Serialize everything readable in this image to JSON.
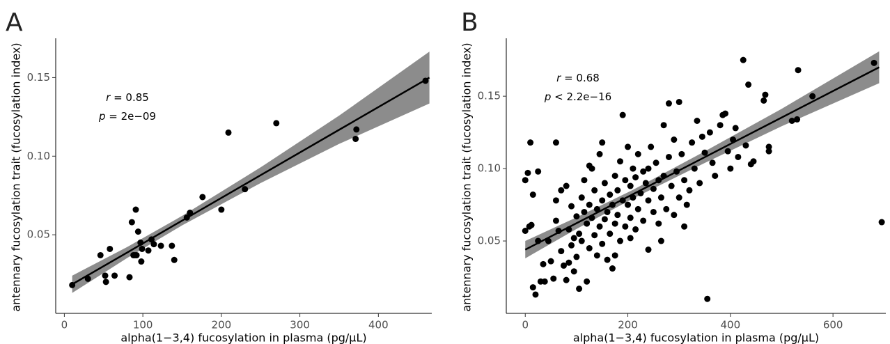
{
  "chart_data": [
    {
      "type": "scatter",
      "panel_label": "A",
      "x_label": "alpha(1−3,4) fucosylation in plasma (pg/μL)",
      "y_label": "antennary fucosylation trait (fucosylation index)",
      "annotations": [
        {
          "symbol": "r",
          "text": " = 0.85"
        },
        {
          "symbol": "p",
          "text": " = 2e−09"
        }
      ],
      "x": [
        10,
        30,
        46,
        52,
        53,
        58,
        64,
        83,
        86,
        88,
        90,
        91,
        92,
        94,
        97,
        98,
        99,
        107,
        111,
        114,
        123,
        137,
        140,
        156,
        160,
        176,
        200,
        209,
        230,
        270,
        371,
        372,
        460
      ],
      "values": [
        0.018,
        0.022,
        0.037,
        0.024,
        0.02,
        0.041,
        0.024,
        0.023,
        0.058,
        0.037,
        0.037,
        0.066,
        0.037,
        0.052,
        0.045,
        0.033,
        0.041,
        0.04,
        0.047,
        0.044,
        0.043,
        0.043,
        0.034,
        0.061,
        0.064,
        0.074,
        0.066,
        0.115,
        0.079,
        0.121,
        0.111,
        0.117,
        0.148
      ],
      "fit": {
        "x": [
          10,
          80,
          150,
          250,
          350,
          465
        ],
        "y": [
          0.0185,
          0.0387,
          0.059,
          0.0879,
          0.1168,
          0.15
        ],
        "lower": [
          0.013,
          0.0352,
          0.056,
          0.0829,
          0.1078,
          0.1335
        ],
        "upper": [
          0.024,
          0.0422,
          0.062,
          0.0929,
          0.1258,
          0.1665
        ]
      },
      "point_color": "#000000",
      "line_color": "#000000",
      "band_color": "#8c8c8c",
      "xlim": [
        -11,
        468
      ],
      "ylim": [
        0,
        0.175
      ],
      "xticks": [
        0,
        100,
        200,
        300,
        400
      ],
      "yticks": [
        0.05,
        {
          "value": 0.1,
          "label": "0.10"
        },
        0.15
      ]
    },
    {
      "type": "scatter",
      "panel_label": "B",
      "x_label": "alpha(1−3,4) fucosylation in plasma (pg/μL)",
      "y_label": "antennary fucosylation trait (fucosylation index)",
      "annotations": [
        {
          "symbol": "r",
          "text": " = 0.68"
        },
        {
          "symbol": "p",
          "text": " < 2.2e−16"
        }
      ],
      "x": [
        0,
        5,
        0,
        8,
        12,
        10,
        15,
        20,
        15,
        25,
        30,
        38,
        35,
        45,
        50,
        55,
        60,
        60,
        65,
        70,
        75,
        80,
        80,
        85,
        90,
        90,
        95,
        100,
        100,
        105,
        105,
        110,
        110,
        115,
        115,
        120,
        120,
        125,
        125,
        130,
        130,
        135,
        135,
        140,
        140,
        145,
        145,
        150,
        150,
        155,
        155,
        160,
        160,
        165,
        165,
        170,
        170,
        175,
        175,
        180,
        180,
        185,
        185,
        190,
        190,
        195,
        195,
        200,
        200,
        205,
        205,
        210,
        210,
        215,
        215,
        220,
        220,
        225,
        230,
        230,
        235,
        240,
        240,
        245,
        250,
        250,
        255,
        260,
        260,
        265,
        270,
        270,
        275,
        280,
        280,
        285,
        290,
        290,
        295,
        300,
        300,
        305,
        310,
        315,
        320,
        325,
        330,
        335,
        340,
        345,
        350,
        355,
        360,
        365,
        370,
        380,
        385,
        390,
        395,
        400,
        405,
        410,
        415,
        425,
        430,
        435,
        440,
        445,
        465,
        468,
        475,
        475,
        520,
        530,
        532,
        560,
        680,
        695,
        60,
        70,
        85,
        95,
        125,
        150,
        175,
        205,
        240,
        265,
        310,
        25
      ],
      "values": [
        0.092,
        0.097,
        0.057,
        0.06,
        0.061,
        0.118,
        0.082,
        0.013,
        0.018,
        0.098,
        0.022,
        0.022,
        0.034,
        0.05,
        0.036,
        0.024,
        0.118,
        0.078,
        0.057,
        0.043,
        0.033,
        0.023,
        0.088,
        0.058,
        0.047,
        0.074,
        0.029,
        0.067,
        0.039,
        0.017,
        0.055,
        0.08,
        0.05,
        0.07,
        0.092,
        0.022,
        0.062,
        0.045,
        0.075,
        0.066,
        0.1,
        0.054,
        0.085,
        0.04,
        0.072,
        0.06,
        0.11,
        0.078,
        0.048,
        0.065,
        0.09,
        0.037,
        0.07,
        0.082,
        0.055,
        0.031,
        0.075,
        0.095,
        0.062,
        0.085,
        0.068,
        0.05,
        0.105,
        0.137,
        0.078,
        0.092,
        0.06,
        0.075,
        0.115,
        0.088,
        0.066,
        0.1,
        0.08,
        0.058,
        0.094,
        0.072,
        0.11,
        0.083,
        0.064,
        0.098,
        0.09,
        0.044,
        0.078,
        0.115,
        0.086,
        0.07,
        0.104,
        0.092,
        0.062,
        0.08,
        0.13,
        0.095,
        0.072,
        0.145,
        0.108,
        0.088,
        0.068,
        0.12,
        0.098,
        0.146,
        0.08,
        0.11,
        0.092,
        0.075,
        0.085,
        0.118,
        0.1,
        0.133,
        0.09,
        0.122,
        0.111,
        0.01,
        0.125,
        0.104,
        0.095,
        0.13,
        0.137,
        0.138,
        0.112,
        0.1,
        0.12,
        0.128,
        0.108,
        0.175,
        0.116,
        0.158,
        0.103,
        0.105,
        0.147,
        0.151,
        0.115,
        0.112,
        0.133,
        0.134,
        0.168,
        0.15,
        0.173,
        0.063,
        0.064,
        0.085,
        0.035,
        0.052,
        0.102,
        0.118,
        0.04,
        0.052,
        0.1,
        0.05,
        0.06,
        0.05
      ],
      "fit": {
        "x": [
          0,
          100,
          210,
          350,
          500,
          690
        ],
        "y": [
          0.044,
          0.0623,
          0.0823,
          0.1079,
          0.1353,
          0.17
        ],
        "lower": [
          0.038,
          0.0583,
          0.0793,
          0.1039,
          0.1293,
          0.159
        ],
        "upper": [
          0.05,
          0.0663,
          0.0853,
          0.1119,
          0.1413,
          0.181
        ]
      },
      "point_color": "#000000",
      "line_color": "#000000",
      "band_color": "#8c8c8c",
      "xlim": [
        -37,
        703
      ],
      "ylim": [
        0,
        0.19
      ],
      "xticks": [
        0,
        200,
        400,
        600
      ],
      "yticks": [
        0.05,
        {
          "value": 0.1,
          "label": "0.10"
        },
        0.15
      ]
    }
  ]
}
